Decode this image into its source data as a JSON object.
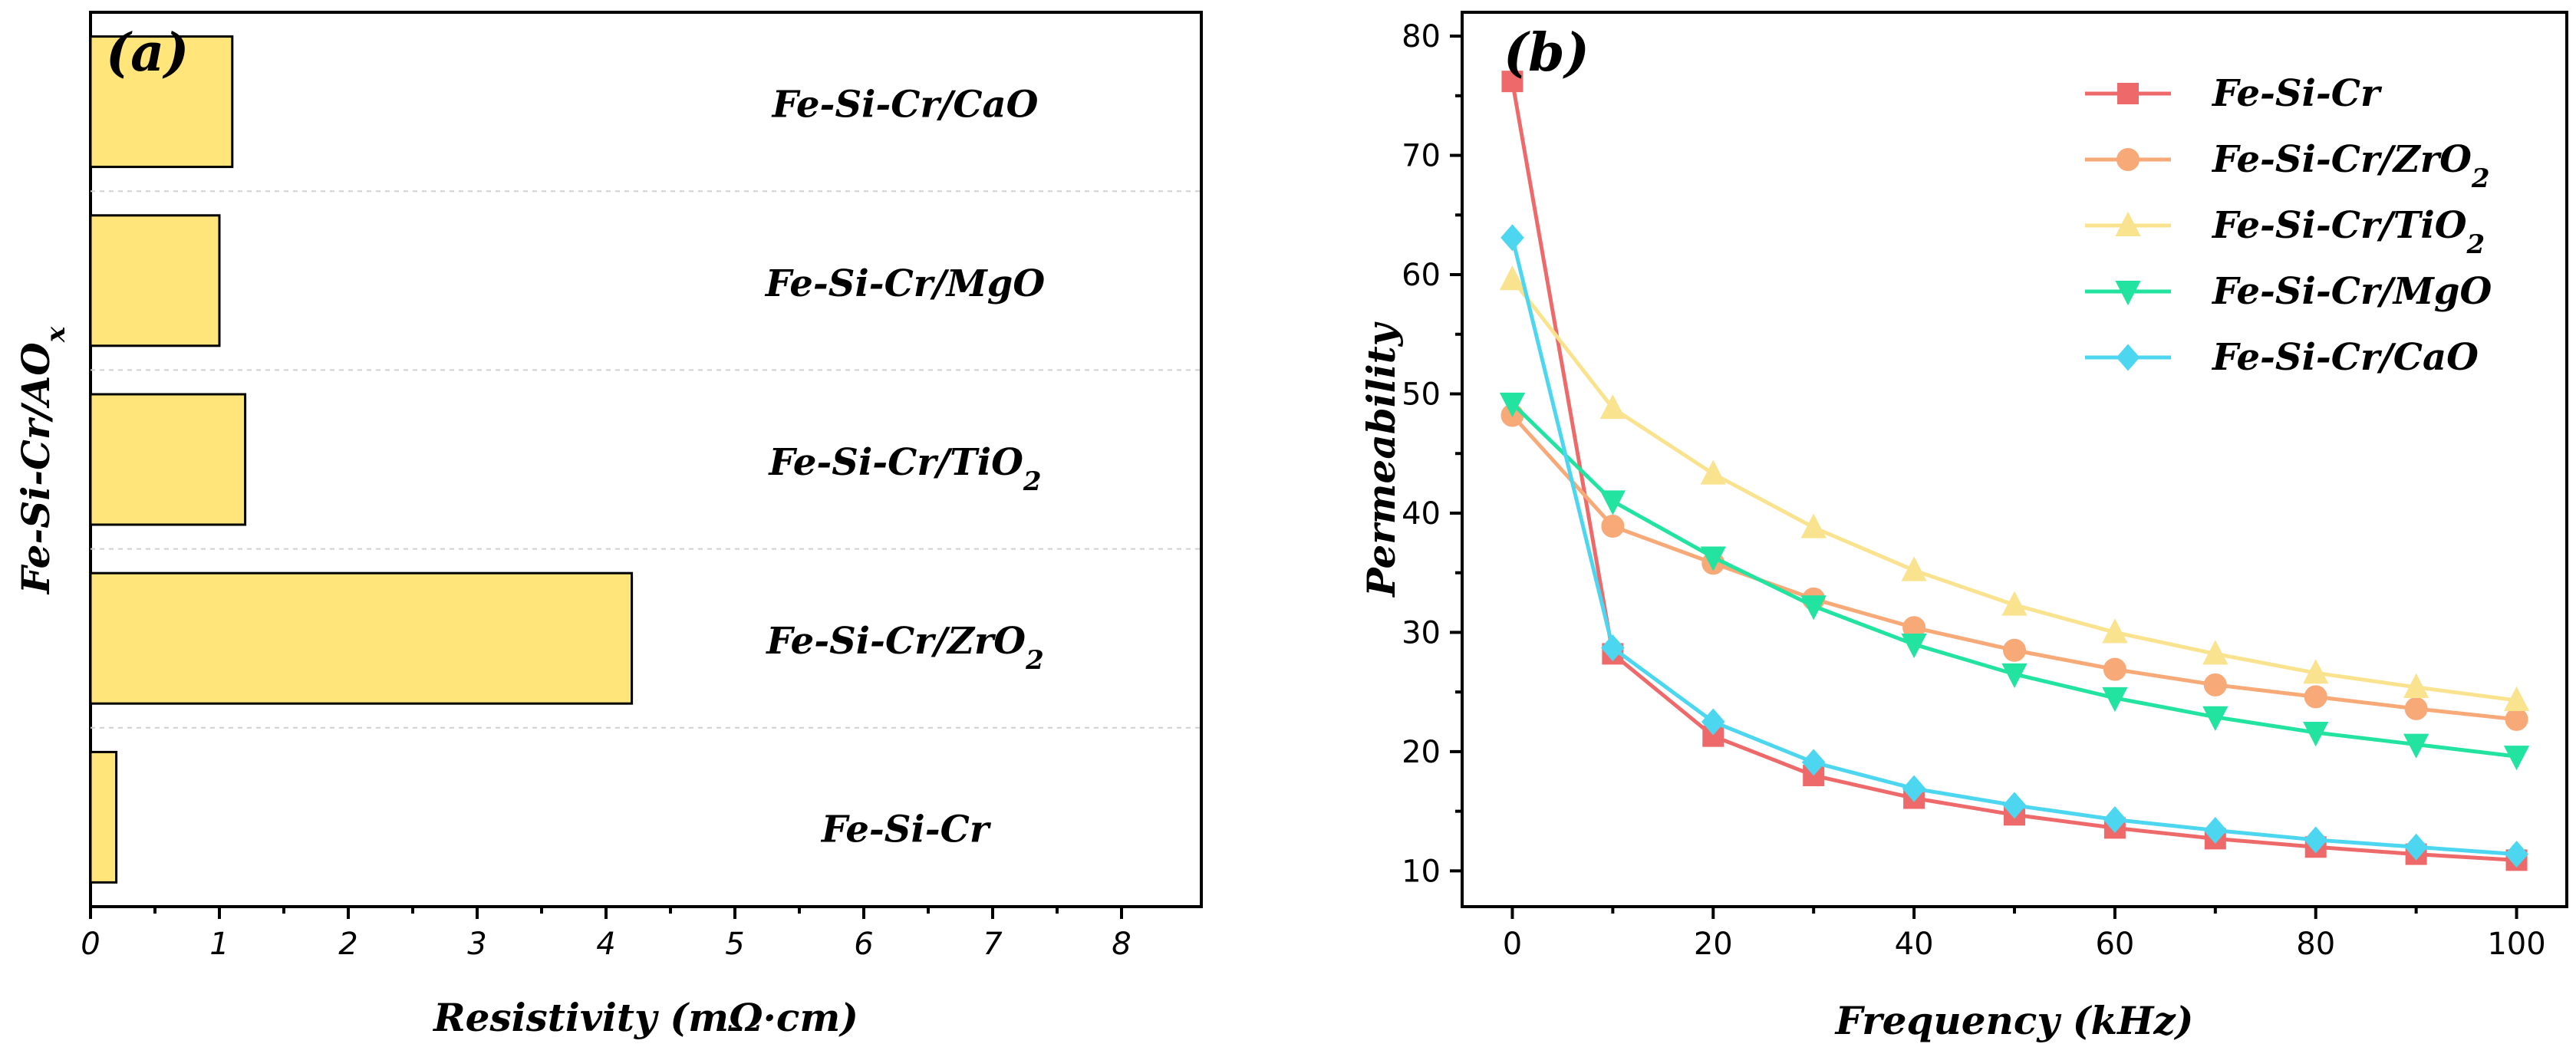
{
  "chart_data": [
    {
      "type": "bar",
      "orientation": "horizontal",
      "panel_label": "(a)",
      "xlabel": "Resistivity (mΩ·cm)",
      "ylabel": "Fe-Si-Cr/AO",
      "ylabel_sub": "x",
      "xlim": [
        0,
        8.5
      ],
      "xticks": [
        "0",
        "1",
        "2",
        "3",
        "4",
        "5",
        "6",
        "7",
        "8"
      ],
      "bar_color": "#FFE57A",
      "categories": [
        {
          "base": "Fe-Si-Cr",
          "sub": ""
        },
        {
          "base": "Fe-Si-Cr/ZrO",
          "sub": "2"
        },
        {
          "base": "Fe-Si-Cr/TiO",
          "sub": "2"
        },
        {
          "base": "Fe-Si-Cr/MgO",
          "sub": ""
        },
        {
          "base": "Fe-Si-Cr/CaO",
          "sub": ""
        }
      ],
      "values": [
        0.2,
        4.2,
        1.2,
        1.0,
        1.1
      ],
      "grid": true
    },
    {
      "type": "line",
      "panel_label": "(b)",
      "xlabel": "Frequency (kHz)",
      "ylabel": "Permeability",
      "xlim": [
        -5,
        105
      ],
      "ylim": [
        7,
        82
      ],
      "xticks": [
        0,
        20,
        40,
        60,
        80,
        100
      ],
      "yticks": [
        10,
        20,
        30,
        40,
        50,
        60,
        70,
        80
      ],
      "x": [
        0,
        10,
        20,
        30,
        40,
        50,
        60,
        70,
        80,
        90,
        100
      ],
      "series": [
        {
          "base": "Fe-Si-Cr",
          "sub": "",
          "color": "#EE6A6A",
          "marker": "square",
          "values": [
            76.2,
            28.2,
            21.3,
            18.0,
            16.1,
            14.7,
            13.6,
            12.7,
            12.0,
            11.4,
            10.9
          ]
        },
        {
          "base": "Fe-Si-Cr/ZrO",
          "sub": "2",
          "color": "#F8A978",
          "marker": "circle",
          "values": [
            48.2,
            38.9,
            35.8,
            32.8,
            30.4,
            28.5,
            26.9,
            25.6,
            24.6,
            23.6,
            22.7
          ]
        },
        {
          "base": "Fe-Si-Cr/TiO",
          "sub": "2",
          "color": "#FAE38F",
          "marker": "triangle-up",
          "values": [
            59.6,
            48.8,
            43.3,
            38.8,
            35.2,
            32.3,
            30.0,
            28.2,
            26.6,
            25.4,
            24.3
          ]
        },
        {
          "base": "Fe-Si-Cr/MgO",
          "sub": "",
          "color": "#22E3A0",
          "marker": "triangle-down",
          "values": [
            49.2,
            41.0,
            36.3,
            32.2,
            29.0,
            26.5,
            24.5,
            22.9,
            21.6,
            20.6,
            19.6
          ]
        },
        {
          "base": "Fe-Si-Cr/CaO",
          "sub": "",
          "color": "#4DD6F0",
          "marker": "diamond",
          "values": [
            63.1,
            28.7,
            22.5,
            19.1,
            16.9,
            15.5,
            14.3,
            13.4,
            12.6,
            12.0,
            11.4
          ]
        }
      ],
      "legend_position": "top-right"
    }
  ]
}
